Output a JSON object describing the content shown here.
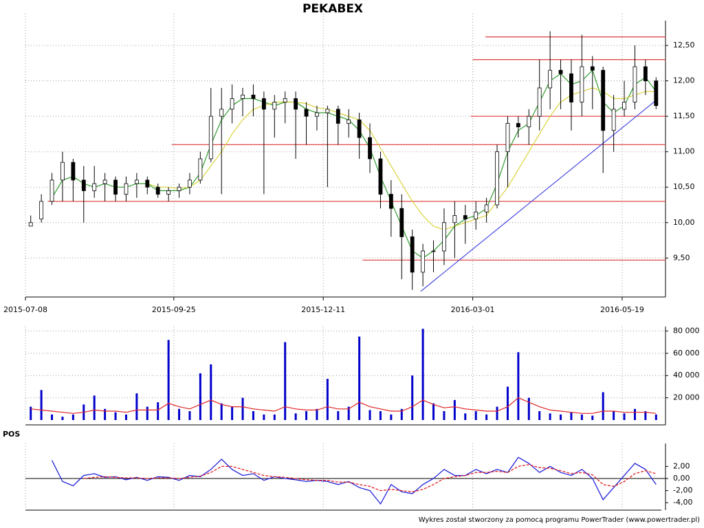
{
  "chart_data": [
    {
      "type": "candlestick",
      "title": "PEKABEX",
      "xlim": [
        0,
        60
      ],
      "xticks": [
        {
          "value": 0,
          "label": "2015-07-08"
        },
        {
          "value": 14,
          "label": "2015-09-25"
        },
        {
          "value": 28.1,
          "label": "2015-12-11"
        },
        {
          "value": 42.2,
          "label": "2016-03-01"
        },
        {
          "value": 56.3,
          "label": "2016-05-19"
        }
      ],
      "ylim": [
        8.95,
        12.85
      ],
      "yticks": [
        {
          "value": 9.5,
          "label": "9,50"
        },
        {
          "value": 10,
          "label": "10,00"
        },
        {
          "value": 10.5,
          "label": "10,50"
        },
        {
          "value": 11,
          "label": "11,00"
        },
        {
          "value": 11.5,
          "label": "11,50"
        },
        {
          "value": 12,
          "label": "12,00"
        },
        {
          "value": 12.5,
          "label": "12,50"
        }
      ],
      "grid": true,
      "open": [
        9.95,
        10.05,
        10.3,
        10.6,
        10.85,
        10.6,
        10.45,
        10.55,
        10.6,
        10.4,
        10.55,
        10.6,
        10.5,
        10.4,
        10.45,
        10.5,
        10.6,
        10.9,
        11.5,
        11.6,
        11.75,
        11.8,
        11.75,
        11.6,
        11.7,
        11.75,
        11.6,
        11.5,
        11.55,
        11.6,
        11.4,
        11.45,
        11.2,
        10.9,
        10.4,
        10.2,
        9.8,
        9.3,
        9.6,
        9.6,
        10.0,
        10.1,
        10.05,
        10.15,
        10.25,
        11.0,
        11.4,
        11.35,
        11.5,
        11.9,
        12.15,
        12.1,
        11.7,
        12.2,
        12.15,
        11.3,
        11.6,
        11.7,
        12.2,
        12.0
      ],
      "high": [
        10.1,
        10.4,
        10.7,
        11.0,
        10.9,
        10.8,
        10.8,
        10.7,
        10.65,
        10.65,
        10.7,
        10.65,
        10.55,
        10.5,
        10.55,
        10.7,
        11.0,
        11.9,
        11.9,
        11.95,
        11.9,
        11.95,
        11.85,
        11.8,
        11.85,
        11.85,
        11.7,
        11.65,
        11.65,
        11.65,
        11.6,
        11.55,
        11.4,
        11.0,
        10.6,
        10.4,
        9.9,
        9.7,
        9.75,
        10.2,
        10.3,
        10.25,
        10.3,
        10.35,
        11.1,
        11.5,
        11.5,
        11.6,
        12.3,
        12.7,
        12.3,
        12.3,
        12.65,
        12.35,
        12.2,
        11.8,
        12.0,
        12.5,
        12.3,
        12.05
      ],
      "low": [
        9.95,
        10.0,
        10.25,
        10.3,
        10.3,
        10.0,
        10.35,
        10.3,
        10.3,
        10.3,
        10.35,
        10.4,
        10.35,
        10.3,
        10.35,
        10.4,
        10.55,
        10.85,
        10.4,
        11.4,
        11.5,
        11.5,
        10.4,
        11.2,
        11.4,
        10.9,
        11.1,
        11.3,
        10.5,
        11.1,
        11.2,
        10.9,
        10.7,
        10.2,
        9.8,
        9.2,
        9.05,
        9.1,
        9.3,
        9.4,
        9.5,
        9.7,
        9.9,
        10.0,
        10.2,
        10.5,
        11.2,
        11.1,
        11.3,
        11.6,
        11.6,
        11.3,
        11.5,
        11.6,
        10.7,
        11.0,
        11.5,
        11.6,
        11.8,
        11.6
      ],
      "close": [
        10.0,
        10.3,
        10.6,
        10.85,
        10.6,
        10.45,
        10.55,
        10.6,
        10.4,
        10.55,
        10.6,
        10.5,
        10.4,
        10.45,
        10.5,
        10.6,
        10.9,
        11.5,
        11.6,
        11.75,
        11.8,
        11.75,
        11.6,
        11.7,
        11.75,
        11.6,
        11.5,
        11.55,
        11.6,
        11.4,
        11.45,
        11.2,
        10.9,
        10.4,
        10.2,
        9.8,
        9.3,
        9.6,
        9.6,
        10.0,
        10.1,
        10.05,
        10.15,
        10.25,
        11.0,
        11.4,
        11.35,
        11.5,
        11.9,
        12.15,
        12.1,
        11.7,
        12.2,
        12.15,
        11.3,
        11.6,
        11.7,
        12.2,
        12.0,
        11.65
      ],
      "lines": [
        {
          "color": "#2e9b2e",
          "values": [
            null,
            null,
            10.35,
            10.6,
            10.65,
            10.55,
            10.5,
            10.55,
            10.5,
            10.5,
            10.55,
            10.55,
            10.45,
            10.45,
            10.45,
            10.5,
            10.7,
            11.1,
            11.45,
            11.65,
            11.75,
            11.75,
            11.7,
            11.65,
            11.7,
            11.7,
            11.6,
            11.55,
            11.55,
            11.5,
            11.45,
            11.3,
            11.05,
            10.65,
            10.3,
            9.95,
            9.6,
            9.5,
            9.6,
            9.75,
            9.95,
            10.05,
            10.1,
            10.2,
            10.55,
            11.0,
            11.3,
            11.4,
            11.7,
            12.0,
            12.1,
            11.95,
            12.0,
            12.15,
            11.7,
            11.55,
            11.65,
            11.95,
            12.05,
            11.85
          ]
        },
        {
          "color": "#d9d23a",
          "values": [
            null,
            null,
            null,
            null,
            null,
            null,
            null,
            null,
            null,
            null,
            null,
            10.55,
            10.5,
            10.5,
            10.48,
            10.5,
            10.6,
            10.8,
            11.0,
            11.25,
            11.45,
            11.6,
            11.65,
            11.7,
            11.7,
            11.7,
            11.68,
            11.62,
            11.6,
            11.55,
            11.5,
            11.45,
            11.3,
            11.05,
            10.8,
            10.55,
            10.3,
            10.1,
            9.95,
            9.9,
            9.95,
            10.0,
            10.05,
            10.1,
            10.3,
            10.5,
            10.75,
            11.0,
            11.25,
            11.5,
            11.7,
            11.8,
            11.85,
            11.9,
            11.85,
            11.75,
            11.75,
            11.8,
            11.85,
            11.85
          ]
        }
      ],
      "levels": [
        {
          "value": 12.62,
          "from": 43.4
        },
        {
          "value": 12.3,
          "from": 42.2
        },
        {
          "value": 11.5,
          "from": 42.0
        },
        {
          "value": 11.1,
          "from": 13.8
        },
        {
          "value": 10.3,
          "from": 2.1
        },
        {
          "value": 9.47,
          "from": 31.8
        }
      ],
      "level_color": "#e04a4a",
      "trendline": {
        "x": [
          37.3,
          59.7
        ],
        "y": [
          9.03,
          11.75
        ],
        "color": "#4a4ae0"
      }
    },
    {
      "type": "bar",
      "color": "#0000cc",
      "ylim": [
        0,
        84000
      ],
      "yticks": [
        {
          "value": 20000,
          "label": "20 000"
        },
        {
          "value": 40000,
          "label": "40 000"
        },
        {
          "value": 60000,
          "label": "60 000"
        },
        {
          "value": 80000,
          "label": "80 000"
        }
      ],
      "values": [
        12000,
        27000,
        5000,
        3000,
        5000,
        14000,
        22000,
        10000,
        7000,
        5000,
        24000,
        12000,
        16000,
        72000,
        10000,
        8000,
        42000,
        50000,
        15000,
        12000,
        20000,
        8000,
        5000,
        5000,
        70000,
        6000,
        8000,
        10000,
        37000,
        8000,
        12000,
        75000,
        9000,
        8000,
        5000,
        10000,
        40000,
        82000,
        15000,
        8000,
        18000,
        6000,
        8000,
        5000,
        12000,
        30000,
        61000,
        20000,
        8000,
        6000,
        5000,
        7000,
        5000,
        4000,
        25000,
        8000,
        6000,
        10000,
        8000,
        5000
      ],
      "line": {
        "color": "#e02020",
        "values": [
          10000,
          9000,
          8000,
          7000,
          6000,
          7000,
          9000,
          8000,
          8000,
          7000,
          9000,
          9000,
          9000,
          15000,
          12000,
          10000,
          14000,
          18000,
          14000,
          12000,
          12000,
          10000,
          9000,
          8000,
          12000,
          10000,
          9000,
          9000,
          12000,
          10000,
          10000,
          16000,
          12000,
          10000,
          8000,
          8000,
          12000,
          18000,
          14000,
          11000,
          12000,
          10000,
          9000,
          8000,
          8000,
          12000,
          20000,
          16000,
          12000,
          9000,
          8000,
          7000,
          6000,
          6000,
          8000,
          8000,
          7000,
          7000,
          7000,
          6000
        ]
      }
    },
    {
      "type": "line",
      "title": "POS",
      "ylim": [
        -5,
        5.8
      ],
      "yticks": [
        {
          "value": 2,
          "label": "2,00"
        },
        {
          "value": 0,
          "label": "0,00"
        },
        {
          "value": -2,
          "label": "-2,00"
        },
        {
          "value": -4,
          "label": "-4,00"
        }
      ],
      "series": [
        {
          "color": "#2020dd",
          "values": [
            null,
            null,
            3.0,
            -0.5,
            -1.2,
            0.5,
            0.8,
            0.2,
            0.3,
            -0.2,
            0.2,
            -0.3,
            0.3,
            0.2,
            -0.3,
            0.5,
            0.3,
            1.5,
            3.2,
            1.5,
            0.5,
            0.8,
            -0.3,
            0.3,
            0.0,
            -0.2,
            -0.5,
            -0.3,
            -0.5,
            -1.0,
            -0.5,
            -1.5,
            -2.0,
            -4.2,
            -1.0,
            -2.2,
            -2.5,
            -1.0,
            0.0,
            1.5,
            0.5,
            0.5,
            1.5,
            0.8,
            1.5,
            1.0,
            3.5,
            2.5,
            1.0,
            2.0,
            1.0,
            0.5,
            1.5,
            0.0,
            -3.5,
            -1.5,
            0.5,
            2.5,
            1.5,
            -1.0
          ]
        },
        {
          "color": "#e02020",
          "dashed": true,
          "values": [
            null,
            null,
            null,
            null,
            null,
            0.0,
            0.2,
            0.3,
            0.2,
            0.1,
            0.1,
            0.0,
            0.1,
            0.1,
            0.0,
            0.2,
            0.4,
            1.0,
            2.0,
            2.0,
            1.5,
            1.0,
            0.5,
            0.3,
            0.2,
            0.0,
            -0.2,
            -0.3,
            -0.3,
            -0.6,
            -0.6,
            -1.0,
            -1.3,
            -2.0,
            -1.8,
            -2.0,
            -2.2,
            -1.8,
            -1.0,
            0.0,
            0.3,
            0.5,
            1.0,
            1.0,
            1.2,
            1.0,
            2.0,
            2.3,
            1.8,
            1.7,
            1.3,
            0.8,
            1.0,
            0.6,
            -1.0,
            -1.3,
            -0.5,
            0.8,
            1.3,
            0.8
          ]
        }
      ]
    }
  ],
  "footer": "Wykres został stworzony za pomocą programu PowerTrader (www.powertrader.pl)"
}
